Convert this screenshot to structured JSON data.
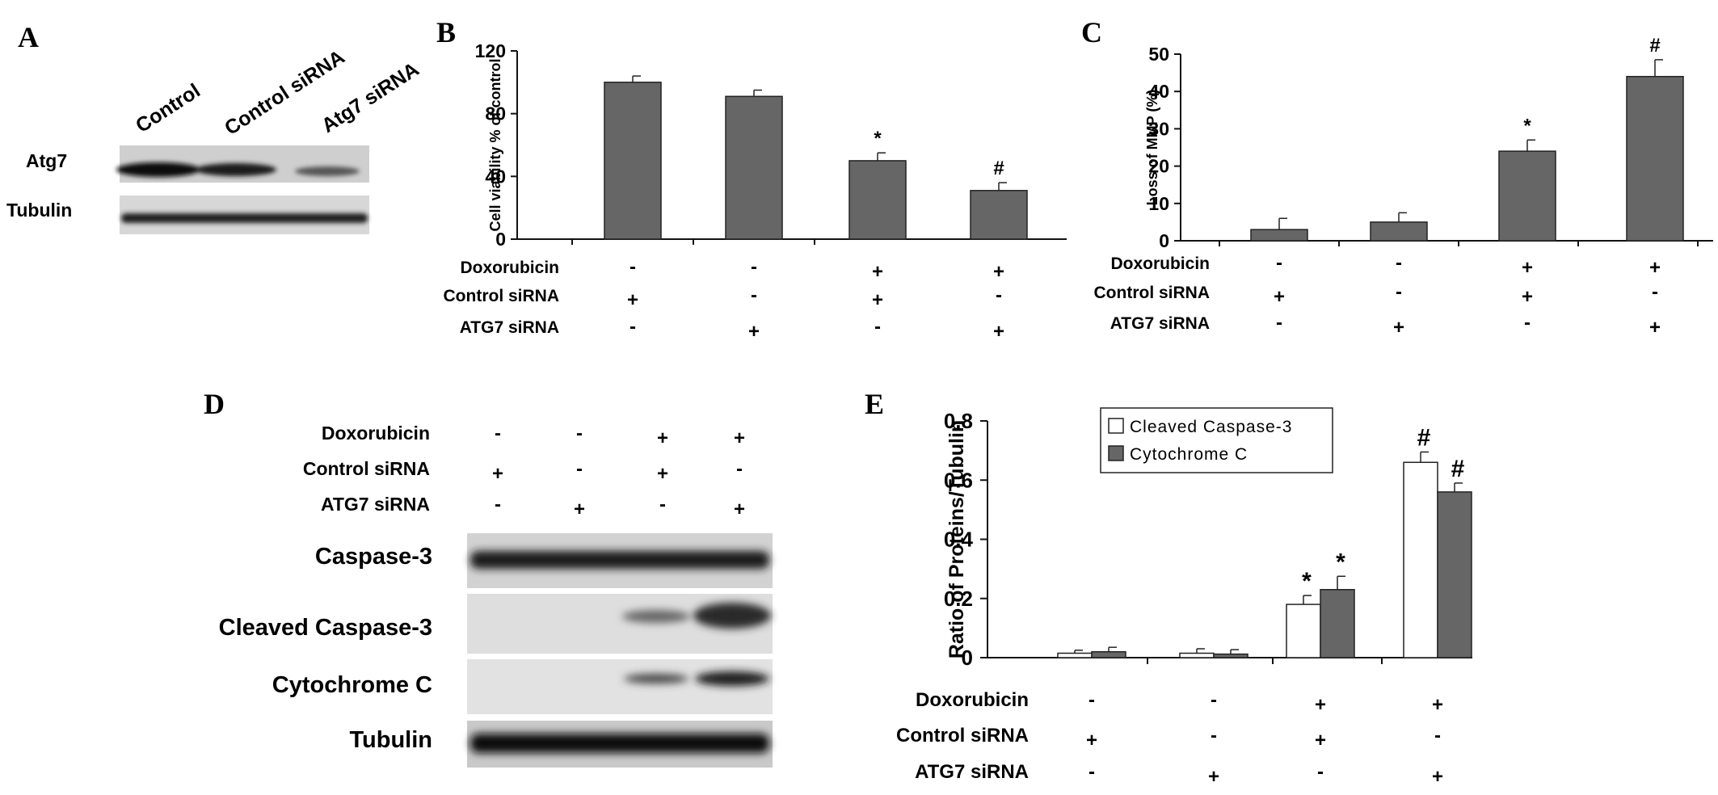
{
  "panel_letters": {
    "A": "A",
    "B": "B",
    "C": "C",
    "D": "D",
    "E": "E"
  },
  "panelA": {
    "lanes": [
      "Control",
      "Control siRNA",
      "Atg7 siRNA"
    ],
    "rows": [
      "Atg7",
      "Tubulin"
    ]
  },
  "conditions": {
    "labels": [
      "Doxorubicin",
      "Control siRNA",
      "ATG7 siRNA"
    ],
    "doxorubicin": [
      "-",
      "-",
      "+",
      "+"
    ],
    "control_sirna": [
      "+",
      "-",
      "+",
      "-"
    ],
    "atg7_sirna": [
      "-",
      "+",
      "-",
      "+"
    ]
  },
  "panelD": {
    "rows": [
      "Caspase-3",
      "Cleaved Caspase-3",
      "Cytochrome C",
      "Tubulin"
    ]
  },
  "chart_data": [
    {
      "type": "bar",
      "panel": "B",
      "ylabel": "Cell viability % of control",
      "ylim": [
        0,
        120
      ],
      "yticks": [
        "0",
        "40",
        "80",
        "120"
      ],
      "values": [
        100,
        91,
        50,
        31
      ],
      "errors": [
        4,
        4,
        5,
        5
      ],
      "annotations": [
        "",
        "",
        "*",
        "#"
      ],
      "bar_color": "#666666"
    },
    {
      "type": "bar",
      "panel": "C",
      "ylabel": "Loss of MMP (%)",
      "ylim": [
        0,
        50
      ],
      "yticks": [
        "0",
        "10",
        "20",
        "30",
        "40",
        "50"
      ],
      "values": [
        3,
        5,
        24,
        44
      ],
      "errors": [
        3,
        2.5,
        3,
        4.5
      ],
      "annotations": [
        "",
        "",
        "*",
        "#"
      ],
      "bar_color": "#666666"
    },
    {
      "type": "bar",
      "panel": "E",
      "ylabel": "Ratio of Proteins/Tubulin",
      "ylim": [
        0,
        0.8
      ],
      "yticks": [
        "0",
        "0.2",
        "0.4",
        "0.6",
        "0.8"
      ],
      "legend_position": "top-center",
      "series": [
        {
          "name": "Cleaved Caspase-3",
          "values": [
            0.015,
            0.015,
            0.18,
            0.66
          ],
          "errors": [
            0.01,
            0.015,
            0.03,
            0.035
          ],
          "annotations": [
            "",
            "",
            "*",
            "#"
          ],
          "color": "#ffffff"
        },
        {
          "name": "Cytochrome C",
          "values": [
            0.02,
            0.012,
            0.23,
            0.56
          ],
          "errors": [
            0.015,
            0.015,
            0.045,
            0.03
          ],
          "annotations": [
            "",
            "",
            "*",
            "#"
          ],
          "color": "#666666"
        }
      ]
    }
  ]
}
